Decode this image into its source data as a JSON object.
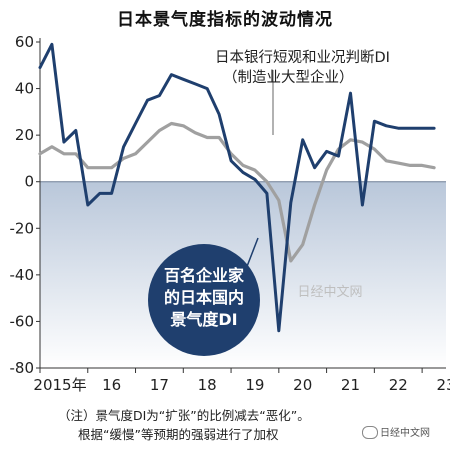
{
  "title": "日本景气度指标的波动情况",
  "notes": {
    "line1": "（注）景气度DI为“扩张”的比例减去“恶化”。",
    "line2": "根据“缓慢”等预期的强弱进行了加权"
  },
  "watermark": {
    "center": "日经中文网",
    "footer": "日经中文网",
    "footer_icon": "wechat-icon"
  },
  "chart_data": {
    "type": "line",
    "title": "日本景气度指标的波动情况",
    "xlabel": "",
    "ylabel": "",
    "ylim": [
      -80,
      60
    ],
    "yticks": [
      60,
      40,
      20,
      0,
      -20,
      -40,
      -60,
      -80
    ],
    "x_tick_labels": [
      "2015年",
      "16",
      "17",
      "18",
      "19",
      "20",
      "21",
      "22",
      "23"
    ],
    "xlim": [
      2015.0,
      2023.5
    ],
    "grid": false,
    "negative_region_shaded": true,
    "series": [
      {
        "name": "百名企业家的日本国内景气度DI",
        "color": "#1f3f6e",
        "label_style": "bubble",
        "x": [
          2015.0,
          2015.25,
          2015.5,
          2015.75,
          2016.0,
          2016.25,
          2016.5,
          2016.75,
          2017.0,
          2017.25,
          2017.5,
          2017.75,
          2018.0,
          2018.25,
          2018.5,
          2018.75,
          2019.0,
          2019.25,
          2019.5,
          2019.75,
          2020.0,
          2020.25,
          2020.5,
          2020.75,
          2021.0,
          2021.25,
          2021.5,
          2021.75,
          2022.0,
          2022.25,
          2022.5,
          2022.75,
          2023.0,
          2023.25
        ],
        "values": [
          49,
          59,
          17,
          22,
          -10,
          -5,
          -5,
          15,
          25,
          35,
          37,
          46,
          44,
          42,
          40,
          29,
          9,
          4,
          1,
          -5,
          -64,
          -9,
          18,
          6,
          13,
          11,
          38,
          -10,
          26,
          24,
          23,
          23,
          23,
          23
        ]
      },
      {
        "name": "日本银行短观和业况判断DI（制造业大型企业）",
        "color": "#a0a0a0",
        "label_style": "text",
        "x": [
          2015.0,
          2015.25,
          2015.5,
          2015.75,
          2016.0,
          2016.25,
          2016.5,
          2016.75,
          2017.0,
          2017.25,
          2017.5,
          2017.75,
          2018.0,
          2018.25,
          2018.5,
          2018.75,
          2019.0,
          2019.25,
          2019.5,
          2019.75,
          2020.0,
          2020.25,
          2020.5,
          2020.75,
          2021.0,
          2021.25,
          2021.5,
          2021.75,
          2022.0,
          2022.25,
          2022.5,
          2022.75,
          2023.0,
          2023.25
        ],
        "values": [
          12,
          15,
          12,
          12,
          6,
          6,
          6,
          10,
          12,
          17,
          22,
          25,
          24,
          21,
          19,
          19,
          12,
          7,
          5,
          0,
          -8,
          -34,
          -27,
          -10,
          5,
          14,
          18,
          17,
          14,
          9,
          8,
          7,
          7,
          6
        ]
      }
    ],
    "series_labels": {
      "bubble_lines": [
        "百名企业家",
        "的日本国内",
        "景气度DI"
      ],
      "boj_lines": [
        "日本银行短观和业况判断DI",
        "（制造业大型企业）"
      ]
    }
  }
}
